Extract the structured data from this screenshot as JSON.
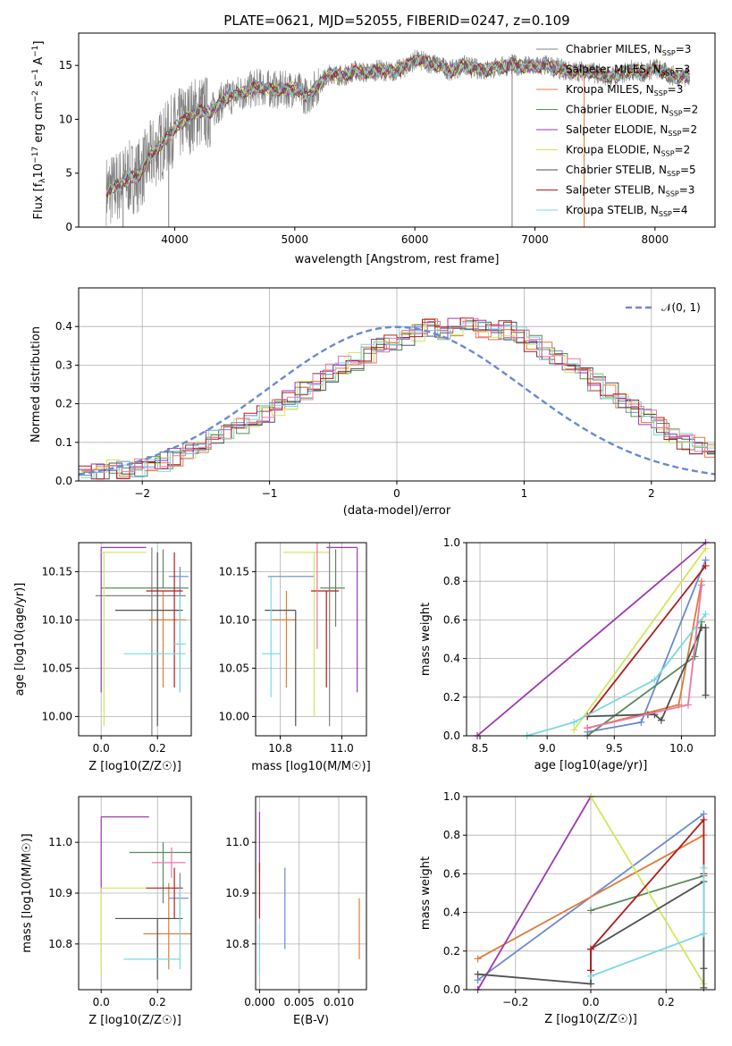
{
  "colors": {
    "series": [
      "#808080",
      "#6a8ad0",
      "#e07b39",
      "#5b8a5b",
      "#9b3ab0",
      "#d0e858",
      "#505050",
      "#b01c1c",
      "#7ad8e0",
      "#e878a8"
    ]
  },
  "chart_data": [
    {
      "id": "spectrum",
      "type": "line",
      "title": "PLATE=0621, MJD=52055, FIBERID=0247, z=0.109",
      "xlabel": "wavelength [Angstrom, rest frame]",
      "ylabel": "Flux [f_λ 10^-17 erg cm^-2 s^-1 A^-1]",
      "xlim": [
        3200,
        8500
      ],
      "ylim": [
        0,
        18
      ],
      "xticks": [
        "4000",
        "5000",
        "6000",
        "7000",
        "8000"
      ],
      "yticks": [
        "0",
        "5",
        "10",
        "15"
      ],
      "grid": false,
      "legend_position": "right",
      "series": [
        {
          "name": "Chabrier MILES, N_SSP=3",
          "color": "#808080"
        },
        {
          "name": "Salpeter MILES, N_SSP=3",
          "color": "#6a8ad0"
        },
        {
          "name": "Kroupa MILES, N_SSP=3",
          "color": "#e07b39"
        },
        {
          "name": "Chabrier ELODIE, N_SSP=2",
          "color": "#5b8a5b"
        },
        {
          "name": "Salpeter ELODIE, N_SSP=2",
          "color": "#9b3ab0"
        },
        {
          "name": "Kroupa ELODIE, N_SSP=2",
          "color": "#d0e858"
        },
        {
          "name": "Chabrier STELIB, N_SSP=5",
          "color": "#505050"
        },
        {
          "name": "Salpeter STELIB, N_SSP=3",
          "color": "#b01c1c"
        },
        {
          "name": "Kroupa STELIB, N_SSP=4",
          "color": "#7ad8e0"
        }
      ],
      "continuum": {
        "x": [
          3430,
          3500,
          3600,
          3700,
          3800,
          3900,
          4000,
          4100,
          4200,
          4300,
          4400,
          4500,
          4600,
          4700,
          4800,
          4900,
          5000,
          5100,
          5200,
          5300,
          5400,
          5500,
          5600,
          5700,
          5800,
          5900,
          6000,
          6100,
          6200,
          6300,
          6400,
          6500,
          6600,
          6700,
          6800,
          6900,
          7000,
          7100,
          7200,
          7300,
          7400,
          7500,
          7600,
          7700,
          7800,
          7900,
          8000,
          8100,
          8200,
          8290
        ],
        "y": [
          3.3,
          3.6,
          4.5,
          4.8,
          6.5,
          7.8,
          9.2,
          10.0,
          10.8,
          10.6,
          11.8,
          12.3,
          12.6,
          13.0,
          12.8,
          12.7,
          12.9,
          12.1,
          13.2,
          14.3,
          14.0,
          14.5,
          14.3,
          14.6,
          14.4,
          14.7,
          15.5,
          15.3,
          15.0,
          14.5,
          15.0,
          14.7,
          14.6,
          14.8,
          15.1,
          14.9,
          14.9,
          15.0,
          14.7,
          14.4,
          14.5,
          14.3,
          14.0,
          14.0,
          14.6,
          14.3,
          14.8,
          14.2,
          13.9,
          14.1
        ]
      },
      "spikes": [
        {
          "x": 3570,
          "y": 0
        },
        {
          "x": 3950,
          "y": 0
        },
        {
          "x": 6810,
          "y": 0
        },
        {
          "x": 7410,
          "y": 0
        }
      ]
    },
    {
      "id": "residuals",
      "type": "bar",
      "xlabel": "(data-model)/error",
      "ylabel": "Normed distribution",
      "xlim": [
        -2.5,
        2.5
      ],
      "ylim": [
        0,
        0.5
      ],
      "xticks": [
        "−2",
        "−1",
        "0",
        "1",
        "2"
      ],
      "yticks": [
        "0.0",
        "0.1",
        "0.2",
        "0.3",
        "0.4"
      ],
      "grid": true,
      "legend_position": "top-right",
      "legend": [
        "𝒩(0, 1)"
      ],
      "bin_width": 0.1,
      "bin_start": -2.5,
      "values": [
        0.02,
        0.025,
        0.03,
        0.03,
        0.035,
        0.04,
        0.05,
        0.06,
        0.075,
        0.09,
        0.11,
        0.125,
        0.14,
        0.155,
        0.17,
        0.19,
        0.21,
        0.235,
        0.255,
        0.28,
        0.3,
        0.31,
        0.33,
        0.345,
        0.36,
        0.375,
        0.38,
        0.395,
        0.39,
        0.4,
        0.41,
        0.395,
        0.385,
        0.39,
        0.375,
        0.355,
        0.335,
        0.32,
        0.3,
        0.28,
        0.255,
        0.23,
        0.21,
        0.19,
        0.165,
        0.14,
        0.12,
        0.1,
        0.09,
        0.075
      ],
      "normal_curve": true
    },
    {
      "id": "age_vs_Z",
      "type": "scatter",
      "xlabel": "Z [log10(Z/Z☉)]",
      "ylabel": "age [log10(age/yr)]",
      "xlim": [
        -0.08,
        0.32
      ],
      "ylim": [
        9.98,
        10.18
      ],
      "xticks": [
        "0.0",
        "0.2"
      ],
      "yticks": [
        "10.00",
        "10.05",
        "10.10",
        "10.15"
      ],
      "grid": true,
      "points": [
        {
          "x": 0.18,
          "y": 10.125,
          "xerr": [
            0.2,
            0.12
          ],
          "yerr": [
            0.15,
            0.05
          ],
          "color": "#808080"
        },
        {
          "x": 0.28,
          "y": 10.145,
          "xerr": [
            0.04,
            0.03
          ],
          "yerr": [
            0.12,
            0.01
          ],
          "color": "#6a8ad0"
        },
        {
          "x": 0.22,
          "y": 10.1,
          "xerr": [
            0.05,
            0.08
          ],
          "yerr": [
            0.07,
            0.03
          ],
          "color": "#e07b39"
        },
        {
          "x": 0.22,
          "y": 10.133,
          "xerr": [
            0.22,
            0.09
          ],
          "yerr": [
            0.0,
            0.04
          ],
          "color": "#5b8a5b"
        },
        {
          "x": 0.0,
          "y": 10.175,
          "xerr": [
            0.0,
            0.16
          ],
          "yerr": [
            0.15,
            0.0
          ],
          "color": "#9b3ab0"
        },
        {
          "x": 0.01,
          "y": 10.17,
          "xerr": [
            0.01,
            0.15
          ],
          "yerr": [
            0.18,
            0.0
          ],
          "color": "#d0e858"
        },
        {
          "x": 0.2,
          "y": 10.11,
          "xerr": [
            0.15,
            0.09
          ],
          "yerr": [
            0.12,
            0.06
          ],
          "color": "#505050"
        },
        {
          "x": 0.26,
          "y": 10.13,
          "xerr": [
            0.1,
            0.03
          ],
          "yerr": [
            0.1,
            0.04
          ],
          "color": "#b01c1c"
        },
        {
          "x": 0.21,
          "y": 10.065,
          "xerr": [
            0.13,
            0.09
          ],
          "yerr": [
            0.0,
            0.0
          ],
          "color": "#7ad8e0"
        },
        {
          "x": 0.28,
          "y": 10.075,
          "xerr": [
            0.02,
            0.02
          ],
          "yerr": [
            0.05,
            0.05
          ],
          "color": "#7ad8e0"
        }
      ]
    },
    {
      "id": "age_vs_mass",
      "type": "scatter",
      "xlabel": "mass [log10(M/M☉)]",
      "ylabel": "",
      "xlim": [
        10.72,
        11.08
      ],
      "ylim": [
        9.98,
        10.18
      ],
      "xticks": [
        "10.8",
        "11.0"
      ],
      "yticks": [
        "10.00",
        "10.05",
        "10.10",
        "10.15"
      ],
      "grid": true,
      "points": [
        {
          "x": 10.84,
          "y": 10.145,
          "xerr": [
            0.08,
            0.07
          ],
          "yerr": [
            0.0,
            0.0
          ],
          "color": "#6a8ad0"
        },
        {
          "x": 10.82,
          "y": 10.1,
          "xerr": [
            0.05,
            0.03
          ],
          "yerr": [
            0.07,
            0.03
          ],
          "color": "#e07b39"
        },
        {
          "x": 10.98,
          "y": 10.133,
          "xerr": [
            0.05,
            0.03
          ],
          "yerr": [
            0.04,
            0.04
          ],
          "color": "#5b8a5b"
        },
        {
          "x": 11.05,
          "y": 10.175,
          "xerr": [
            0.1,
            0.0
          ],
          "yerr": [
            0.15,
            0.0
          ],
          "color": "#9b3ab0"
        },
        {
          "x": 10.91,
          "y": 10.17,
          "xerr": [
            0.1,
            0.05
          ],
          "yerr": [
            0.17,
            0.0
          ],
          "color": "#d0e858"
        },
        {
          "x": 10.85,
          "y": 10.11,
          "xerr": [
            0.1,
            0.0
          ],
          "yerr": [
            0.12,
            0.0
          ],
          "color": "#505050"
        },
        {
          "x": 10.95,
          "y": 10.13,
          "xerr": [
            0.05,
            0.04
          ],
          "yerr": [
            0.1,
            0.0
          ],
          "color": "#b01c1c"
        },
        {
          "x": 10.77,
          "y": 10.065,
          "xerr": [
            0.03,
            0.03
          ],
          "yerr": [
            0.045,
            0.08
          ],
          "color": "#7ad8e0"
        },
        {
          "x": 10.96,
          "y": 10.14,
          "xerr": [
            0.0,
            0.0
          ],
          "yerr": [
            0.15,
            0.04
          ],
          "color": "#808080"
        },
        {
          "x": 10.92,
          "y": 10.14,
          "xerr": [
            0.0,
            0.0
          ],
          "yerr": [
            0.07,
            0.04
          ],
          "color": "#e878a8"
        }
      ]
    },
    {
      "id": "mass_weight_vs_age",
      "type": "line",
      "xlabel": "age [log10(age/yr)]",
      "ylabel": "mass weight",
      "xlim": [
        8.4,
        10.25
      ],
      "ylim": [
        0,
        1
      ],
      "xticks": [
        "8.5",
        "9.0",
        "9.5",
        "10.0"
      ],
      "yticks": [
        "0.0",
        "0.2",
        "0.4",
        "0.6",
        "0.8",
        "1.0"
      ],
      "grid": true,
      "series": [
        {
          "color": "#6a8ad0",
          "x": [
            9.3,
            9.7,
            10.18
          ],
          "y": [
            0.02,
            0.07,
            0.91
          ]
        },
        {
          "color": "#e07b39",
          "x": [
            9.3,
            9.98,
            10.15
          ],
          "y": [
            0.04,
            0.16,
            0.8
          ]
        },
        {
          "color": "#5b8a5b",
          "x": [
            9.3,
            10.1,
            10.15
          ],
          "y": [
            0.0,
            0.41,
            0.59
          ]
        },
        {
          "color": "#9b3ab0",
          "x": [
            8.48,
            10.18
          ],
          "y": [
            0.0,
            1.0
          ]
        },
        {
          "color": "#d0e858",
          "x": [
            9.2,
            10.18
          ],
          "y": [
            0.03,
            0.97
          ]
        },
        {
          "color": "#505050",
          "x": [
            9.3,
            9.75,
            9.8,
            9.85,
            10.15,
            10.18,
            10.18
          ],
          "y": [
            0.1,
            0.11,
            0.11,
            0.08,
            0.56,
            0.56,
            0.21
          ]
        },
        {
          "color": "#b01c1c",
          "x": [
            9.3,
            10.18
          ],
          "y": [
            0.1,
            0.88
          ]
        },
        {
          "color": "#7ad8e0",
          "x": [
            8.85,
            9.2,
            9.8,
            10.18
          ],
          "y": [
            0.0,
            0.07,
            0.29,
            0.63
          ]
        },
        {
          "color": "#e878a8",
          "x": [
            9.3,
            10.05,
            10.15
          ],
          "y": [
            0.04,
            0.16,
            0.78
          ]
        }
      ]
    },
    {
      "id": "mass_vs_Z",
      "type": "scatter",
      "xlabel": "Z [log10(Z/Z☉)]",
      "ylabel": "mass [log10(M/M☉)]",
      "xlim": [
        -0.08,
        0.32
      ],
      "ylim": [
        10.71,
        11.09
      ],
      "xticks": [
        "0.0",
        "0.2"
      ],
      "yticks": [
        "10.8",
        "10.9",
        "11.0"
      ],
      "grid": true,
      "points": [
        {
          "x": 0.28,
          "y": 10.89,
          "xerr": [
            0.04,
            0.03
          ],
          "yerr": [
            0.05,
            0.05
          ],
          "color": "#6a8ad0"
        },
        {
          "x": 0.24,
          "y": 10.82,
          "xerr": [
            0.09,
            0.08
          ],
          "yerr": [
            0.07,
            0.1
          ],
          "color": "#e07b39"
        },
        {
          "x": 0.22,
          "y": 10.98,
          "xerr": [
            0.12,
            0.11
          ],
          "yerr": [
            0.1,
            0.02
          ],
          "color": "#5b8a5b"
        },
        {
          "x": 0.0,
          "y": 11.05,
          "xerr": [
            0.0,
            0.17
          ],
          "yerr": [
            0.15,
            0.0
          ],
          "color": "#9b3ab0"
        },
        {
          "x": 0.0,
          "y": 10.91,
          "xerr": [
            0.0,
            0.17
          ],
          "yerr": [
            0.17,
            0.0
          ],
          "color": "#d0e858"
        },
        {
          "x": 0.2,
          "y": 10.85,
          "xerr": [
            0.15,
            0.09
          ],
          "yerr": [
            0.12,
            0.0
          ],
          "color": "#505050"
        },
        {
          "x": 0.26,
          "y": 10.91,
          "xerr": [
            0.1,
            0.03
          ],
          "yerr": [
            0.06,
            0.04
          ],
          "color": "#b01c1c"
        },
        {
          "x": 0.21,
          "y": 10.77,
          "xerr": [
            0.13,
            0.07
          ],
          "yerr": [
            0.0,
            0.0
          ],
          "color": "#7ad8e0"
        },
        {
          "x": 0.25,
          "y": 10.96,
          "xerr": [
            0.07,
            0.05
          ],
          "yerr": [
            0.03,
            0.03
          ],
          "color": "#e878a8"
        },
        {
          "x": 0.28,
          "y": 10.87,
          "xerr": [
            0.0,
            0.0
          ],
          "yerr": [
            0.12,
            0.04
          ],
          "color": "#7ad8e0"
        }
      ]
    },
    {
      "id": "mass_vs_ebv",
      "type": "scatter",
      "xlabel": "E(B-V)",
      "ylabel": "",
      "xlim": [
        -0.0005,
        0.0135
      ],
      "ylim": [
        10.71,
        11.09
      ],
      "xticks": [
        "0.000",
        "0.005",
        "0.010"
      ],
      "yticks": [
        "10.8",
        "10.9",
        "11.0"
      ],
      "grid": true,
      "points": [
        {
          "x": 0.0,
          "y": 11.0,
          "xerr": [
            0,
            0
          ],
          "yerr": [
            0.06,
            0.06
          ],
          "color": "#9b3ab0"
        },
        {
          "x": 0.0,
          "y": 10.9,
          "xerr": [
            0,
            0
          ],
          "yerr": [
            0.05,
            0.06
          ],
          "color": "#b01c1c"
        },
        {
          "x": 0.0,
          "y": 10.79,
          "xerr": [
            0,
            0
          ],
          "yerr": [
            0.05,
            0.05
          ],
          "color": "#7ad8e0"
        },
        {
          "x": 0.0032,
          "y": 10.87,
          "xerr": [
            0,
            0
          ],
          "yerr": [
            0.08,
            0.08
          ],
          "color": "#6a8ad0"
        },
        {
          "x": 0.0126,
          "y": 10.83,
          "xerr": [
            0,
            0
          ],
          "yerr": [
            0.06,
            0.06
          ],
          "color": "#e07b39"
        }
      ]
    },
    {
      "id": "mass_weight_vs_Z",
      "type": "line",
      "xlabel": "Z [log10(Z/Z☉)]",
      "ylabel": "mass weight",
      "xlim": [
        -0.33,
        0.33
      ],
      "ylim": [
        0,
        1
      ],
      "xticks": [
        "−0.2",
        "0.0",
        "0.2"
      ],
      "yticks": [
        "0.0",
        "0.2",
        "0.4",
        "0.6",
        "0.8",
        "1.0"
      ],
      "grid": true,
      "series": [
        {
          "color": "#6a8ad0",
          "x": [
            -0.3,
            0.3
          ],
          "y": [
            0.05,
            0.91
          ]
        },
        {
          "color": "#e07b39",
          "x": [
            -0.3,
            0.3
          ],
          "y": [
            0.16,
            0.8
          ]
        },
        {
          "color": "#5b8a5b",
          "x": [
            0.0,
            0.3
          ],
          "y": [
            0.41,
            0.59
          ]
        },
        {
          "color": "#9b3ab0",
          "x": [
            -0.3,
            0.0
          ],
          "y": [
            0.0,
            1.0
          ]
        },
        {
          "color": "#d0e858",
          "x": [
            0.0,
            0.3
          ],
          "y": [
            1.0,
            0.03
          ]
        },
        {
          "color": "#505050",
          "x": [
            -0.3,
            0.0,
            0.0,
            0.3,
            0.3,
            0.3
          ],
          "y": [
            0.08,
            0.03,
            0.21,
            0.56,
            0.11,
            0.01
          ]
        },
        {
          "color": "#b01c1c",
          "x": [
            0.0,
            0.0,
            0.3,
            0.3
          ],
          "y": [
            0.1,
            0.21,
            0.88,
            0.6
          ]
        },
        {
          "color": "#7ad8e0",
          "x": [
            0.0,
            0.3,
            0.3
          ],
          "y": [
            0.07,
            0.29,
            0.63
          ]
        }
      ]
    }
  ]
}
